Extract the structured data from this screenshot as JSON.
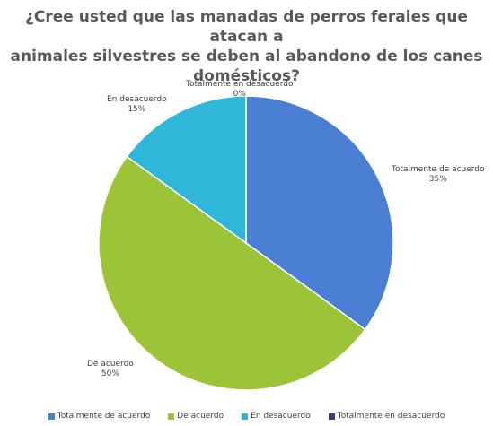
{
  "chart_data": {
    "type": "pie",
    "title_lines": [
      "¿Cree usted que las manadas de perros ferales que atacan a",
      "animales silvestres se deben al abandono de los canes",
      "domésticos?"
    ],
    "slices": [
      {
        "label": "Totalmente de acuerdo",
        "value": 35,
        "value_text": "35%",
        "color": "#4a7fd4"
      },
      {
        "label": "De acuerdo",
        "value": 50,
        "value_text": "50%",
        "color": "#9cc438"
      },
      {
        "label": "En desacuerdo",
        "value": 15,
        "value_text": "15%",
        "color": "#30b6d8"
      },
      {
        "label": "Totalmente en desacuerdo",
        "value": 0,
        "value_text": "0%",
        "color": "#2f3f7a"
      }
    ],
    "legend_position": "bottom"
  }
}
